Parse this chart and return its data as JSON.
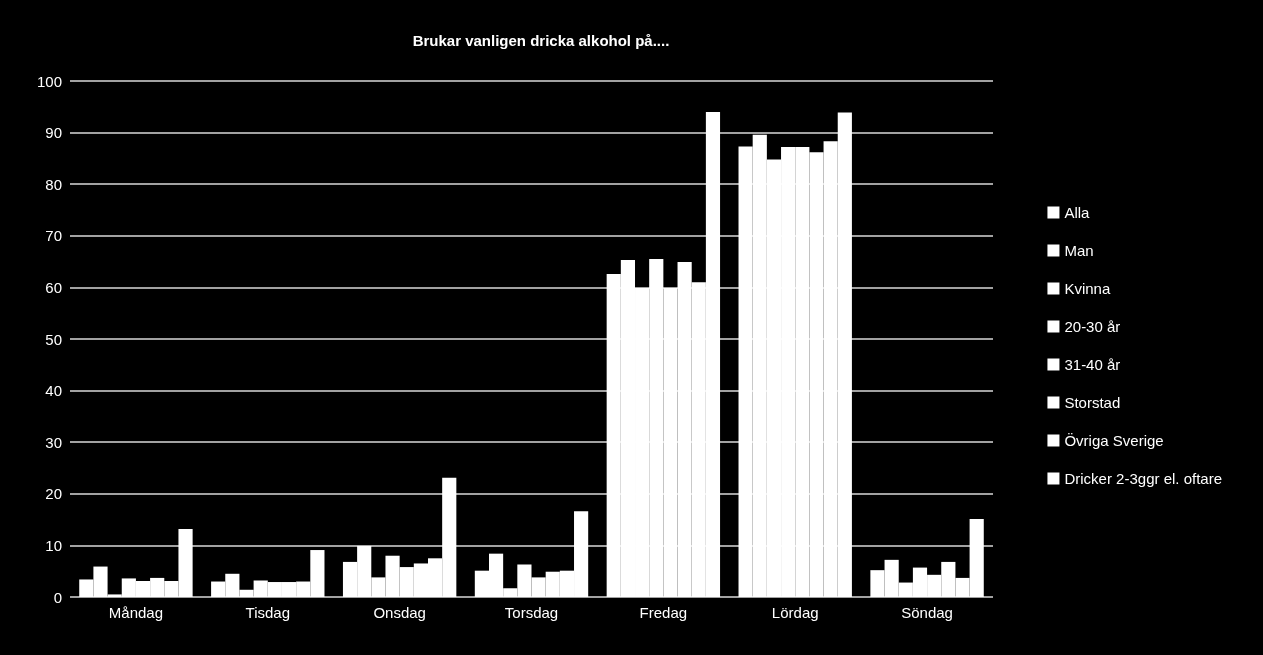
{
  "chart_data": {
    "type": "bar",
    "title": "Brukar vanligen dricka alkohol på....",
    "categories": [
      "Måndag",
      "Tisdag",
      "Onsdag",
      "Torsdag",
      "Fredag",
      "Lördag",
      "Söndag"
    ],
    "series": [
      {
        "name": "Alla",
        "color": "#ffffff",
        "values": [
          3.4,
          3.0,
          6.8,
          5.1,
          62.6,
          87.3,
          5.2
        ]
      },
      {
        "name": "Man",
        "color": "#ffffff",
        "values": [
          5.9,
          4.5,
          9.9,
          8.4,
          65.3,
          89.6,
          7.2
        ]
      },
      {
        "name": "Kvinna",
        "color": "#ffffff",
        "values": [
          0.5,
          1.4,
          3.8,
          1.7,
          59.9,
          84.8,
          2.8
        ]
      },
      {
        "name": "20-30 år",
        "color": "#ffffff",
        "values": [
          3.6,
          3.2,
          8.0,
          6.3,
          65.5,
          87.2,
          5.7
        ]
      },
      {
        "name": "31-40 år",
        "color": "#ffffff",
        "values": [
          3.1,
          2.9,
          5.8,
          3.8,
          59.9,
          87.2,
          4.3
        ]
      },
      {
        "name": "Storstad",
        "color": "#ffffff",
        "values": [
          3.7,
          2.9,
          6.5,
          4.9,
          64.9,
          86.2,
          6.8
        ]
      },
      {
        "name": "Övriga Sverige",
        "color": "#ffffff",
        "values": [
          3.1,
          3.0,
          7.5,
          5.1,
          61.0,
          88.3,
          3.7
        ]
      },
      {
        "name": "Dricker 2-3ggr el. oftare",
        "color": "#ffffff",
        "values": [
          13.2,
          9.1,
          23.1,
          16.6,
          94.0,
          93.9,
          15.1
        ]
      }
    ],
    "ylim": [
      0,
      100
    ],
    "yticks": [
      0,
      10,
      20,
      30,
      40,
      50,
      60,
      70,
      80,
      90,
      100
    ],
    "grid": "y",
    "legend": "right"
  }
}
